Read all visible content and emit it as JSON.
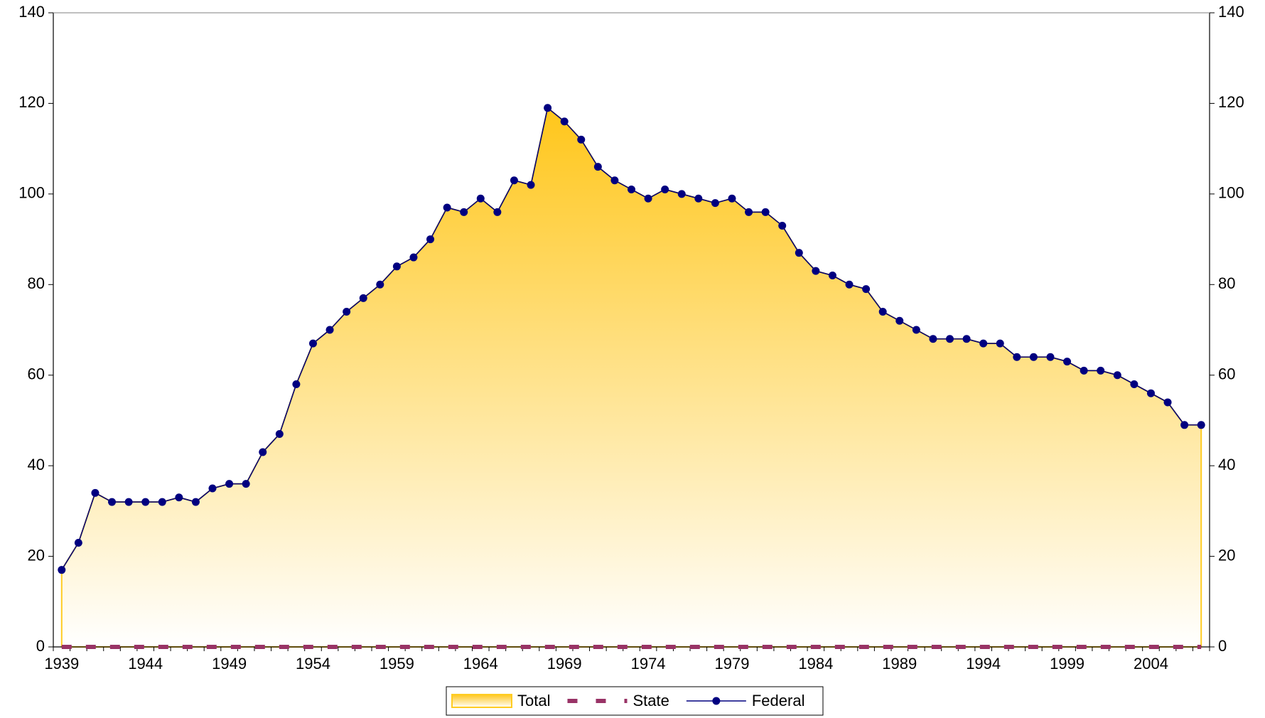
{
  "chart_data": {
    "type": "line",
    "categories": [
      "1939",
      null,
      null,
      null,
      null,
      "1944",
      null,
      null,
      null,
      null,
      "1949",
      null,
      null,
      null,
      null,
      "1954",
      null,
      null,
      null,
      null,
      "1959",
      null,
      null,
      null,
      null,
      "1964",
      null,
      null,
      null,
      null,
      "1969",
      null,
      null,
      null,
      null,
      "1974",
      null,
      null,
      null,
      null,
      "1979",
      null,
      null,
      null,
      null,
      "1984",
      null,
      null,
      null,
      null,
      "1989",
      null,
      null,
      null,
      null,
      "1994",
      null,
      null,
      null,
      null,
      "1999",
      null,
      null,
      null,
      null,
      "2004",
      null,
      null,
      null
    ],
    "series": [
      {
        "name": "Total",
        "type": "area",
        "color": "#ffcc22",
        "values": [
          17,
          23,
          34,
          32,
          32,
          32,
          32,
          33,
          32,
          35,
          36,
          36,
          43,
          47,
          58,
          67,
          70,
          74,
          77,
          80,
          84,
          86,
          90,
          97,
          96,
          99,
          96,
          103,
          102,
          119,
          116,
          112,
          106,
          103,
          101,
          99,
          101,
          100,
          99,
          98,
          99,
          96,
          96,
          93,
          87,
          83,
          82,
          80,
          79,
          74,
          72,
          70,
          68,
          68,
          68,
          67,
          67,
          64,
          64,
          64,
          63,
          61,
          61,
          60,
          58,
          56,
          54,
          49,
          49
        ]
      },
      {
        "name": "State",
        "type": "line",
        "dashed": true,
        "color": "#993366",
        "values": [
          0,
          0,
          0,
          0,
          0,
          0,
          0,
          0,
          0,
          0,
          0,
          0,
          0,
          0,
          0,
          0,
          0,
          0,
          0,
          0,
          0,
          0,
          0,
          0,
          0,
          0,
          0,
          0,
          0,
          0,
          0,
          0,
          0,
          0,
          0,
          0,
          0,
          0,
          0,
          0,
          0,
          0,
          0,
          0,
          0,
          0,
          0,
          0,
          0,
          0,
          0,
          0,
          0,
          0,
          0,
          0,
          0,
          0,
          0,
          0,
          0,
          0,
          0,
          0,
          0,
          0,
          0,
          0,
          0
        ]
      },
      {
        "name": "Federal",
        "type": "line",
        "markers": true,
        "color": "#000080",
        "values": [
          17,
          23,
          34,
          32,
          32,
          32,
          32,
          33,
          32,
          35,
          36,
          36,
          43,
          47,
          58,
          67,
          70,
          74,
          77,
          80,
          84,
          86,
          90,
          97,
          96,
          99,
          96,
          103,
          102,
          119,
          116,
          112,
          106,
          103,
          101,
          99,
          101,
          100,
          99,
          98,
          99,
          96,
          96,
          93,
          87,
          83,
          82,
          80,
          79,
          74,
          72,
          70,
          68,
          68,
          68,
          67,
          67,
          64,
          64,
          64,
          63,
          61,
          61,
          60,
          58,
          56,
          54,
          49,
          49
        ]
      }
    ],
    "ylim": [
      0,
      140
    ],
    "yticks": [
      0,
      20,
      40,
      60,
      80,
      100,
      120,
      140
    ],
    "y2lim": [
      0,
      140
    ],
    "y2ticks": [
      0,
      20,
      40,
      60,
      80,
      100,
      120,
      140
    ],
    "legend": "bottom"
  }
}
